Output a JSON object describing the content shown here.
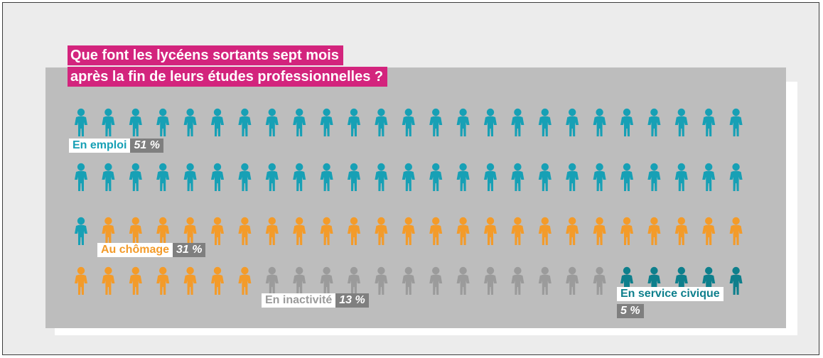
{
  "title_lines": [
    "Que font les lycéens sortants sept mois",
    "après la fin de leurs études professionnelles ?"
  ],
  "chart_data": {
    "type": "pictogram",
    "total_icons": 100,
    "icons_per_row": 25,
    "series": [
      {
        "name": "En emploi",
        "value": 51,
        "label": "51 %",
        "color": "#17a0b5"
      },
      {
        "name": "Au chômage",
        "value": 31,
        "label": "31 %",
        "color": "#f39b2a"
      },
      {
        "name": "En inactivité",
        "value": 13,
        "label": "13 %",
        "color": "#9b9b9b"
      },
      {
        "name": "En service civique",
        "value": 5,
        "label": "5 %",
        "color": "#0e7f8c"
      }
    ]
  },
  "labels": {
    "emploi": {
      "name": "En emploi",
      "pct": "51 %"
    },
    "chomage": {
      "name": "Au chômage",
      "pct": "31 %"
    },
    "inactivite": {
      "name": "En inactivité",
      "pct": "13 %"
    },
    "civique": {
      "name": "En service civique",
      "pct": "5 %"
    }
  }
}
